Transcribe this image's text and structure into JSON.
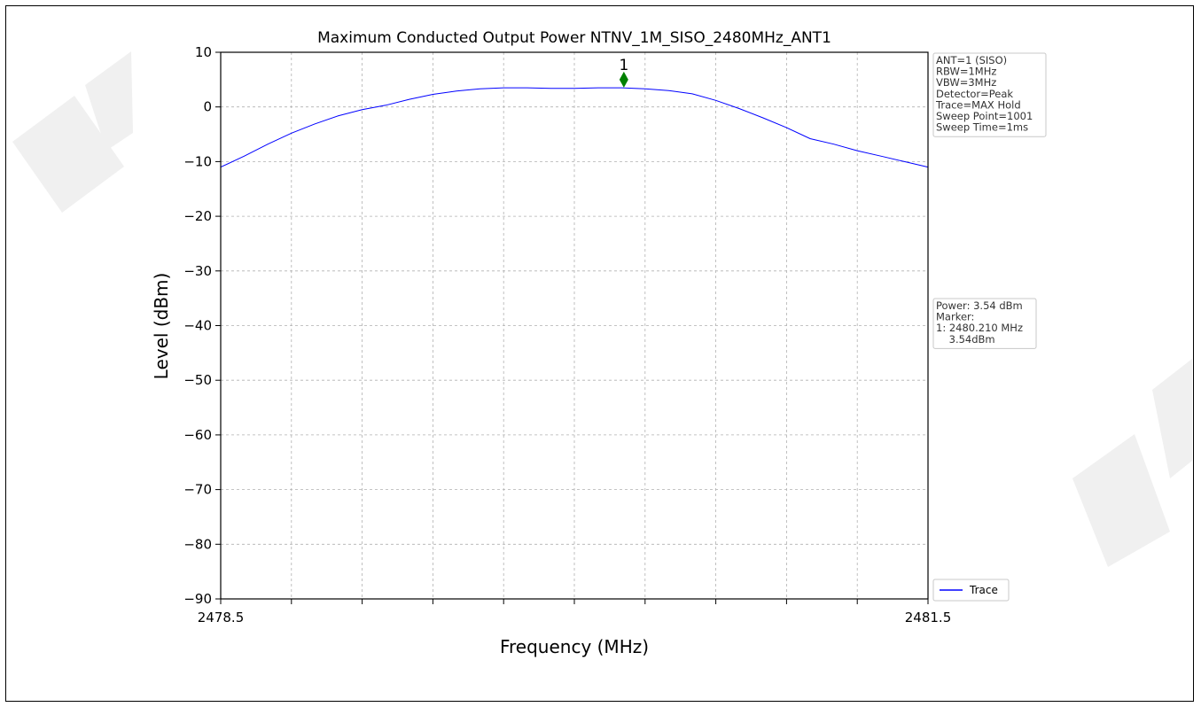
{
  "chart_data": {
    "type": "line",
    "title": "Maximum Conducted Output Power NTNV_1M_SISO_2480MHz_ANT1",
    "xlabel": "Frequency (MHz)",
    "ylabel": "Level (dBm)",
    "xlim": [
      2478.5,
      2481.5
    ],
    "ylim": [
      -90,
      10
    ],
    "x_ticks": [
      2478.5,
      2481.5
    ],
    "x_tick_labels": [
      "2478.5",
      "2481.5"
    ],
    "x_minor_ticks": [
      2478.8,
      2479.1,
      2479.4,
      2479.7,
      2480.0,
      2480.3,
      2480.6,
      2480.9,
      2481.2
    ],
    "y_ticks": [
      10,
      0,
      -10,
      -20,
      -30,
      -40,
      -50,
      -60,
      -70,
      -80,
      -90
    ],
    "y_tick_labels": [
      "10",
      "0",
      "−10",
      "−20",
      "−30",
      "−40",
      "−50",
      "−60",
      "−70",
      "−80",
      "−90"
    ],
    "grid": true,
    "legend_position": "bottom-right-outside",
    "series": [
      {
        "name": "Trace",
        "color": "#0000ff",
        "x": [
          2478.5,
          2478.6,
          2478.7,
          2478.8,
          2478.9,
          2479.0,
          2479.1,
          2479.2,
          2479.3,
          2479.4,
          2479.5,
          2479.6,
          2479.7,
          2479.8,
          2479.9,
          2480.0,
          2480.1,
          2480.2,
          2480.3,
          2480.4,
          2480.5,
          2480.6,
          2480.7,
          2480.8,
          2480.9,
          2481.0,
          2481.1,
          2481.2,
          2481.3,
          2481.4,
          2481.5
        ],
        "y": [
          -11,
          -9,
          -6.8,
          -4.8,
          -3.1,
          -1.6,
          -0.5,
          0.3,
          1.4,
          2.3,
          2.9,
          3.3,
          3.5,
          3.5,
          3.4,
          3.4,
          3.5,
          3.5,
          3.3,
          3.0,
          2.4,
          1.2,
          -0.3,
          -2.0,
          -3.8,
          -5.8,
          -6.8,
          -8.0,
          -9.0,
          -10.0,
          -11
        ]
      }
    ],
    "marker": {
      "label": "1",
      "x": 2480.21,
      "y": 5.0,
      "color": "#008000"
    },
    "info_box_1": [
      "ANT=1 (SISO)",
      "RBW=1MHz",
      "VBW=3MHz",
      "Detector=Peak",
      "Trace=MAX Hold",
      "Sweep Point=1001",
      "Sweep Time=1ms"
    ],
    "info_box_2": [
      "Power: 3.54 dBm",
      "Marker:",
      "1: 2480.210 MHz",
      "    3.54dBm"
    ],
    "legend_label": "Trace"
  }
}
